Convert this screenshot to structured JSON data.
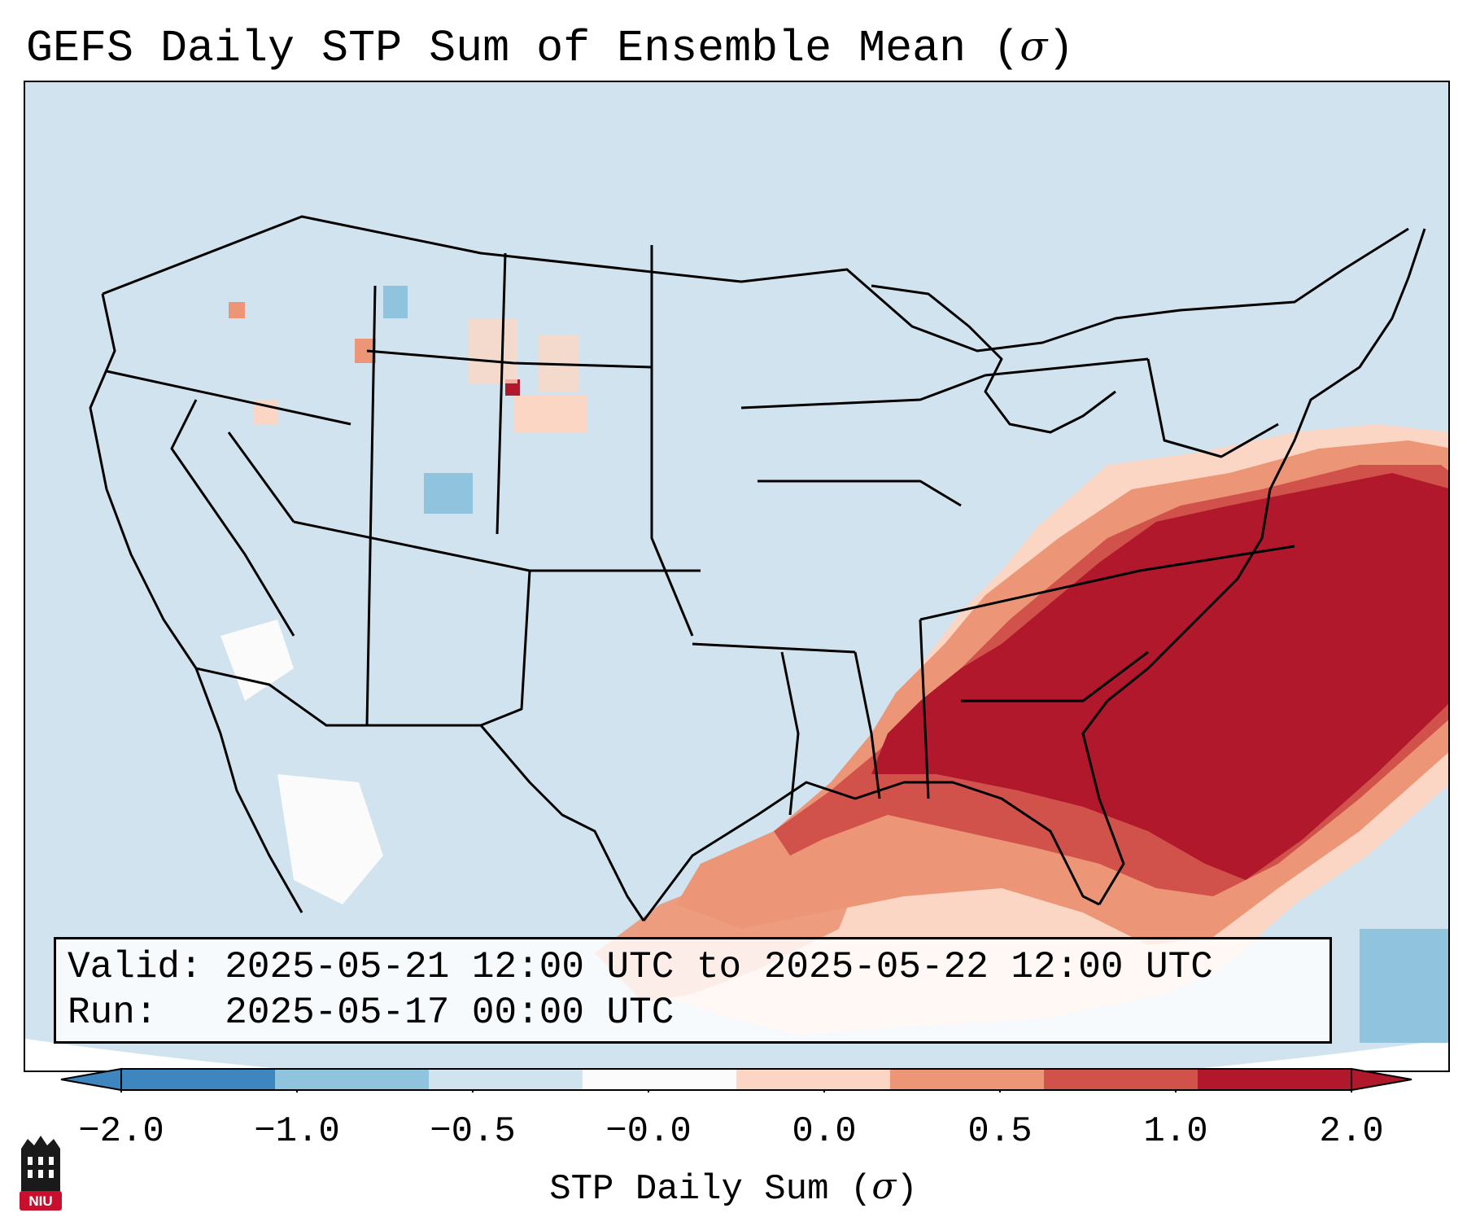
{
  "title": {
    "prefix": "GEFS Daily STP Sum of Ensemble Mean (",
    "symbol": "σ",
    "suffix": ")"
  },
  "info": {
    "valid_label": "Valid:",
    "valid_value": "2025-05-21 12:00 UTC to 2025-05-22 12:00 UTC",
    "run_label": "Run:",
    "run_value": "2025-05-17 00:00 UTC"
  },
  "colorbar": {
    "ticks": [
      "−2.0",
      "−1.0",
      "−0.5",
      "−0.0",
      "0.0",
      "0.5",
      "1.0",
      "2.0"
    ],
    "colors": [
      "#3d86c0",
      "#8fc3de",
      "#d0e3ef",
      "#fbfbfb",
      "#fcd6c4",
      "#ec9677",
      "#d0524b",
      "#b2182b"
    ],
    "label_prefix": "STP Daily Sum (",
    "label_symbol": "σ",
    "label_suffix": ")"
  },
  "map": {
    "background_color": "#d0e3ef",
    "outline_color": "#000000"
  },
  "logo": {
    "text": "NIU",
    "color": "#c8102e"
  }
}
